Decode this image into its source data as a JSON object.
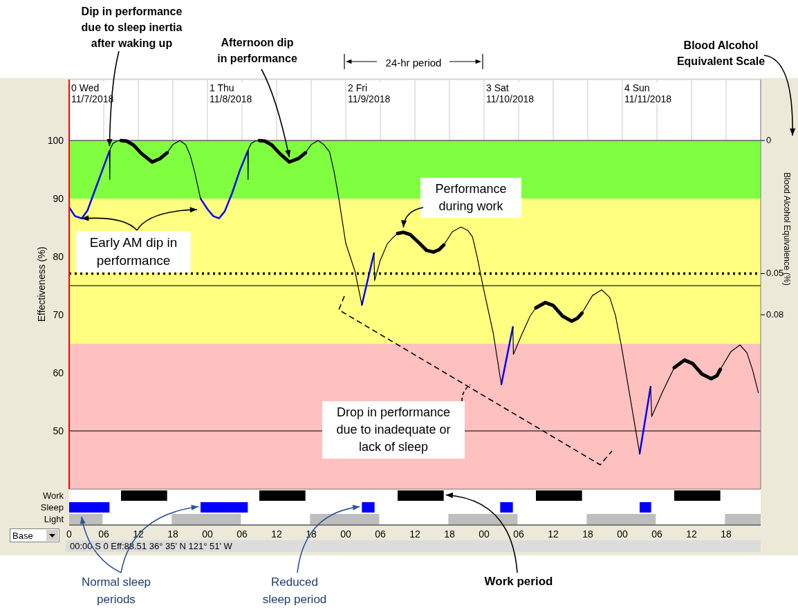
{
  "chart_data": [
    {
      "type": "line",
      "ylabel": "Effectiveness (%)",
      "y2label": "Blood Alcohol Equivalence (%)",
      "xlim": [
        0,
        120
      ],
      "xticks": [
        {
          "value": 0,
          "label": null
        },
        {
          "value": 6,
          "label": null
        },
        {
          "value": 12,
          "label": null
        },
        {
          "value": 18,
          "label": null
        },
        {
          "value": 24,
          "label": null
        },
        {
          "value": 30,
          "label": null
        },
        {
          "value": 36,
          "label": null
        },
        {
          "value": 42,
          "label": null
        },
        {
          "value": 48,
          "label": null
        },
        {
          "value": 54,
          "label": null
        },
        {
          "value": 60,
          "label": null
        },
        {
          "value": 66,
          "label": null
        },
        {
          "value": 72,
          "label": null
        },
        {
          "value": 78,
          "label": null
        },
        {
          "value": 84,
          "label": null
        },
        {
          "value": 90,
          "label": null
        },
        {
          "value": 96,
          "label": null
        },
        {
          "value": 102,
          "label": null
        },
        {
          "value": 108,
          "label": null
        },
        {
          "value": 114,
          "label": null
        }
      ],
      "tick_labels": "y",
      "ylim": [
        40,
        110.5
      ],
      "yticks": [
        50,
        60,
        70,
        80,
        90,
        100
      ],
      "grid": true,
      "bands": [
        {
          "axis": "y",
          "from": 90,
          "to": 100,
          "color": "#80ff40"
        },
        {
          "axis": "y",
          "from": 65,
          "to": 90,
          "color": "#ffff80"
        },
        {
          "axis": "y",
          "from": 40,
          "to": 65,
          "color": "#ffc0c0"
        }
      ],
      "ref_lines": [
        {
          "axis": "y",
          "value": 75,
          "color": "#404040"
        },
        {
          "axis": "y",
          "value": 50,
          "color": "#404040"
        },
        {
          "axis": "y",
          "value": 100,
          "color": "#606060"
        },
        {
          "axis": "y",
          "value": 77.1,
          "color": "#000000",
          "line_style": "dotted"
        }
      ],
      "annotations": [
        {
          "text": "Dip in performance due to sleep inertia after waking up",
          "x": 7,
          "y": 98.2
        },
        {
          "text": "Afternoon dip in performance",
          "x": 38.2,
          "y": 96.3
        },
        "Early AM dip in performance",
        {
          "text": "Performance during work",
          "x": 58,
          "y": 84.2
        },
        "Drop in performance due to inadequate or lack of sleep",
        "24-hr period",
        "Blood Alcohol Equivalent Scale",
        {
          "text": "0",
          "x": 120,
          "y": 100
        },
        {
          "text": "0.05",
          "x": 120,
          "y": 77.1
        },
        {
          "text": "0.08",
          "x": 120,
          "y": 70
        },
        "0 Wed\n11/7/2018",
        "1 Thu\n11/8/2018",
        "2 Fri\n11/9/2018",
        "3 Sat\n11/10/2018",
        "4 Sun\n11/11/2018"
      ],
      "series": [
        {
          "color": "#0000ff",
          "x": [
            0,
            1,
            2.2,
            3.2,
            4.5,
            5.8,
            7,
            null,
            22.8,
            24,
            25,
            26,
            27,
            28.3,
            29.6,
            31,
            null,
            50.8,
            52.9,
            null,
            75,
            77,
            null,
            99,
            100.9
          ],
          "values": [
            88.5,
            87,
            86.6,
            88,
            91.5,
            95,
            98.2,
            null,
            90,
            88.2,
            87,
            86.6,
            87.8,
            91,
            94.8,
            98.2,
            null,
            71.7,
            80.6,
            null,
            58,
            67.9,
            null,
            46.1,
            57.6
          ]
        },
        {
          "color": "#000000",
          "x": [
            7,
            7.05,
            7.1,
            7.6,
            8.3,
            9,
            null,
            17,
            18,
            19.2,
            20.2,
            21,
            21.8,
            22.8,
            null,
            31,
            31.05,
            31.1,
            31.6,
            32.3,
            33,
            null,
            41,
            42,
            43.2,
            44.2,
            45.2,
            46,
            46.8,
            48,
            49.6,
            50.8,
            null,
            52.9,
            53,
            54,
            55.2,
            56.2,
            57,
            null,
            65,
            66.5,
            68,
            69.2,
            70,
            70.8,
            71.8,
            73.6,
            75,
            null,
            77,
            77.1,
            78.5,
            80,
            81,
            null,
            89,
            90.8,
            92.4,
            93.8,
            94.8,
            95.8,
            97.4,
            99,
            null,
            100.9,
            101.1,
            103,
            105,
            null,
            113,
            114.8,
            116.4,
            117.6,
            118.6,
            119.6
          ],
          "values": [
            98.2,
            93.3,
            98.5,
            99.5,
            99.9,
            100,
            null,
            97.9,
            99.3,
            100,
            99.3,
            97.5,
            94.5,
            90,
            null,
            98.2,
            93.3,
            98.5,
            99.5,
            99.9,
            100,
            null,
            97.9,
            99.3,
            100,
            99.3,
            98,
            94.5,
            90,
            82.3,
            77.5,
            71.7,
            null,
            80.6,
            75.9,
            79.4,
            82.2,
            83.3,
            84,
            null,
            82,
            84.3,
            85.1,
            84.5,
            83.4,
            80,
            75,
            66.8,
            58,
            null,
            67.9,
            63.2,
            66.5,
            69.8,
            71.2,
            null,
            70.3,
            73.3,
            74.3,
            73,
            69.9,
            64.8,
            55.5,
            46.1,
            null,
            57.6,
            52.5,
            56.8,
            60.9,
            null,
            60.6,
            63.6,
            64.8,
            63.5,
            60.5,
            56.6
          ]
        },
        {
          "color": "#000000",
          "x": [
            9,
            10,
            11.2,
            12.5,
            14.4,
            15.8,
            17,
            null,
            33,
            34,
            35.2,
            36.5,
            38.2,
            39.8,
            41,
            null,
            57,
            58,
            59.2,
            60.8,
            62,
            63.2,
            64.2,
            65,
            null,
            81,
            82.6,
            84,
            85.6,
            87.2,
            88.2,
            89,
            null,
            105,
            106.8,
            108.2,
            109.8,
            111.4,
            112.4,
            113
          ],
          "values": [
            100,
            99.9,
            99.2,
            97.8,
            96.3,
            96.9,
            97.9,
            null,
            100,
            99.9,
            99.2,
            97.8,
            96.3,
            96.9,
            97.9,
            null,
            84,
            84.2,
            83.8,
            82.3,
            81.1,
            80.8,
            81.2,
            82,
            null,
            71.2,
            72.1,
            71.6,
            69.8,
            68.9,
            69.4,
            70.3,
            null,
            60.9,
            62.2,
            61.6,
            59.8,
            59,
            59.5,
            60.6
          ]
        }
      ]
    },
    {
      "type": "bar",
      "orientation": "horizontal",
      "categories": [
        "Work",
        "Sleep",
        "Light"
      ],
      "xlim": [
        0,
        120
      ],
      "xticks": [
        0,
        {
          "value": 6,
          "label": "06"
        },
        {
          "value": 12,
          "label": "12"
        },
        {
          "value": 18,
          "label": "18"
        },
        {
          "value": 24,
          "label": "00"
        },
        {
          "value": 30,
          "label": "06"
        },
        {
          "value": 36,
          "label": "12"
        },
        {
          "value": 42,
          "label": "18"
        },
        {
          "value": 48,
          "label": "00"
        },
        {
          "value": 54,
          "label": "06"
        },
        {
          "value": 60,
          "label": "12"
        },
        {
          "value": 66,
          "label": "18"
        },
        {
          "value": 72,
          "label": "00"
        },
        {
          "value": 78,
          "label": "06"
        },
        {
          "value": 84,
          "label": "12"
        },
        {
          "value": 90,
          "label": "18"
        },
        {
          "value": 96,
          "label": "00"
        },
        {
          "value": 102,
          "label": "06"
        },
        {
          "value": 108,
          "label": "12"
        },
        {
          "value": 114,
          "label": "18"
        }
      ],
      "annotations": [
        {
          "text": "Normal sleep periods",
          "x": 22.8,
          "y": "Sleep"
        },
        {
          "text": "Reduced sleep period",
          "x": 50.8,
          "y": "Sleep"
        },
        {
          "text": "Work period",
          "x": 65,
          "y": "Work"
        },
        "Base",
        "00:00 S 0 Eff:88.51  36° 35' N 121° 51' W"
      ],
      "series": [
        {
          "colors": [
            "#000000",
            "#0000ff",
            "#bebebe"
          ],
          "base": [
            9,
            0,
            0
          ],
          "values": [
            8,
            7,
            5.8
          ]
        },
        {
          "colors": [
            "#000000",
            "#0000ff",
            "#bebebe"
          ],
          "base": [
            33,
            22.8,
            17.8
          ],
          "values": [
            8,
            8.2,
            12
          ]
        },
        {
          "colors": [
            "#000000",
            "#0000ff",
            "#bebebe"
          ],
          "base": [
            57,
            50.8,
            41.8
          ],
          "values": [
            8,
            2.2,
            12
          ]
        },
        {
          "colors": [
            "#000000",
            "#0000ff",
            "#bebebe"
          ],
          "base": [
            81,
            74.8,
            65.8
          ],
          "values": [
            8,
            2.2,
            12
          ]
        },
        {
          "colors": [
            "#000000",
            "#0000ff",
            "#bebebe"
          ],
          "base": [
            105,
            99,
            89.8
          ],
          "values": [
            8,
            2,
            12
          ]
        },
        {
          "colors": [
            "#000000",
            "#0000ff",
            "#bebebe"
          ],
          "base": [
            null,
            null,
            113.8
          ],
          "values": [
            null,
            null,
            6.2
          ]
        }
      ]
    }
  ]
}
